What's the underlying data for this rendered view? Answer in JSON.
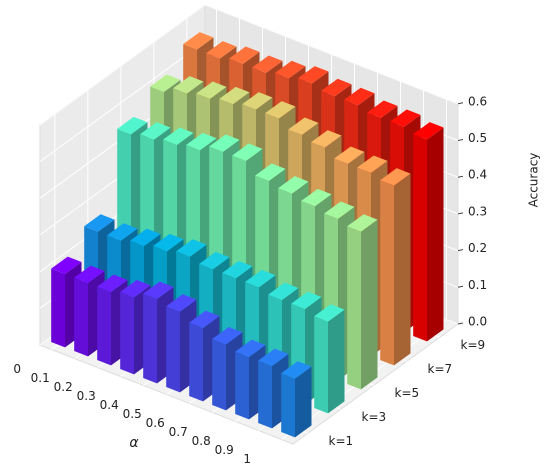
{
  "chart_data": {
    "type": "bar3d",
    "x_label": "α",
    "z_label": "Accuracy",
    "categories": [
      "0",
      "0.1",
      "0.2",
      "0.3",
      "0.4",
      "0.5",
      "0.6",
      "0.7",
      "0.8",
      "0.9",
      "1"
    ],
    "series": [
      {
        "name": "k=1",
        "values": [
          0.2,
          0.2,
          0.2,
          0.21,
          0.23,
          0.22,
          0.2,
          0.18,
          0.17,
          0.17,
          0.16
        ]
      },
      {
        "name": "k=3",
        "values": [
          0.25,
          0.25,
          0.26,
          0.27,
          0.28,
          0.27,
          0.27,
          0.27,
          0.26,
          0.26,
          0.25
        ]
      },
      {
        "name": "k=5",
        "values": [
          0.45,
          0.46,
          0.47,
          0.48,
          0.5,
          0.5,
          0.47,
          0.46,
          0.45,
          0.44,
          0.43
        ]
      },
      {
        "name": "k=7",
        "values": [
          0.5,
          0.52,
          0.53,
          0.54,
          0.55,
          0.55,
          0.53,
          0.52,
          0.5,
          0.5,
          0.49
        ]
      },
      {
        "name": "k=9",
        "values": [
          0.55,
          0.55,
          0.56,
          0.56,
          0.57,
          0.58,
          0.57,
          0.57,
          0.56,
          0.56,
          0.55
        ]
      }
    ],
    "zlim": [
      0,
      0.6
    ],
    "zticks": [
      {
        "value": 0,
        "label": "0.0"
      },
      0.1,
      0.2,
      0.3,
      0.4,
      0.5,
      0.6
    ],
    "colormap": "rainbow",
    "grid": true
  }
}
